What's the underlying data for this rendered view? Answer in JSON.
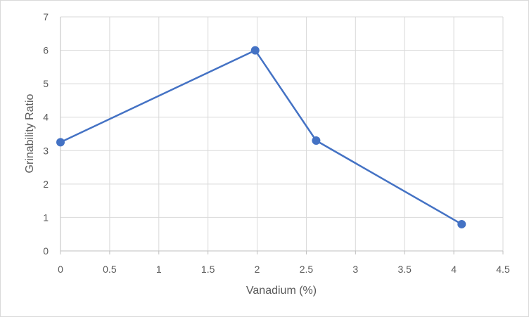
{
  "chart_data": {
    "type": "scatter",
    "title": "",
    "xlabel": "Vanadium (%)",
    "ylabel": "Grinability Ratio",
    "xlim": [
      0,
      4.5
    ],
    "ylim": [
      0,
      7
    ],
    "x_ticks": [
      "0",
      "0.5",
      "1",
      "1.5",
      "2",
      "2.5",
      "3",
      "3.5",
      "4",
      "4.5"
    ],
    "y_ticks": [
      "0",
      "1",
      "2",
      "3",
      "4",
      "5",
      "6",
      "7"
    ],
    "grid": true,
    "legend": "none",
    "series": [
      {
        "color": "#4472c4",
        "line": "straight",
        "markers": "circle",
        "x": [
          0,
          1.98,
          2.6,
          4.08
        ],
        "y": [
          3.25,
          6.0,
          3.3,
          0.8
        ]
      }
    ]
  }
}
